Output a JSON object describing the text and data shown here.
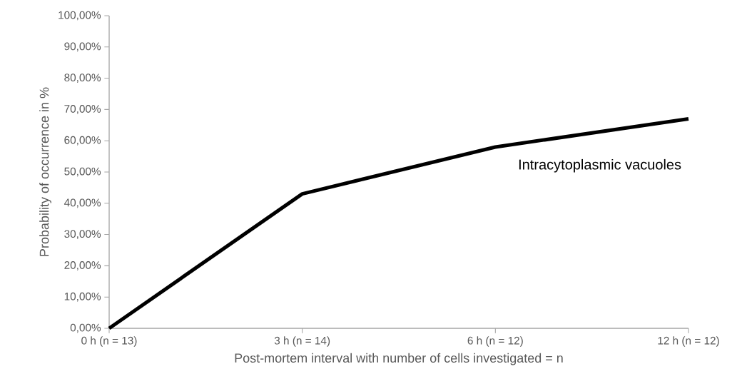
{
  "chart_data": {
    "type": "line",
    "xlabel": "Post-mortem interval with number of cells investigated = n",
    "ylabel": "Probability of occurrence in %",
    "categories": [
      "0 h (n = 13)",
      "3 h (n = 14)",
      "6 h (n = 12)",
      "12 h (n = 12)"
    ],
    "series": [
      {
        "name": "Intracytoplasmic vacuoles",
        "color": "#000000",
        "values": [
          0,
          43,
          58,
          67
        ]
      }
    ],
    "ylim": [
      0,
      100
    ],
    "yticks": [
      {
        "value": 0,
        "label": "0,00%"
      },
      {
        "value": 10,
        "label": "10,00%"
      },
      {
        "value": 20,
        "label": "20,00%"
      },
      {
        "value": 30,
        "label": "30,00%"
      },
      {
        "value": 40,
        "label": "40,00%"
      },
      {
        "value": 50,
        "label": "50,00%"
      },
      {
        "value": 60,
        "label": "60,00%"
      },
      {
        "value": 70,
        "label": "70,00%"
      },
      {
        "value": 80,
        "label": "80,00%"
      },
      {
        "value": 90,
        "label": "90,00%"
      },
      {
        "value": 100,
        "label": "100,00%"
      }
    ],
    "grid": false,
    "legend": false,
    "marker": "none",
    "line_style": "solid"
  }
}
